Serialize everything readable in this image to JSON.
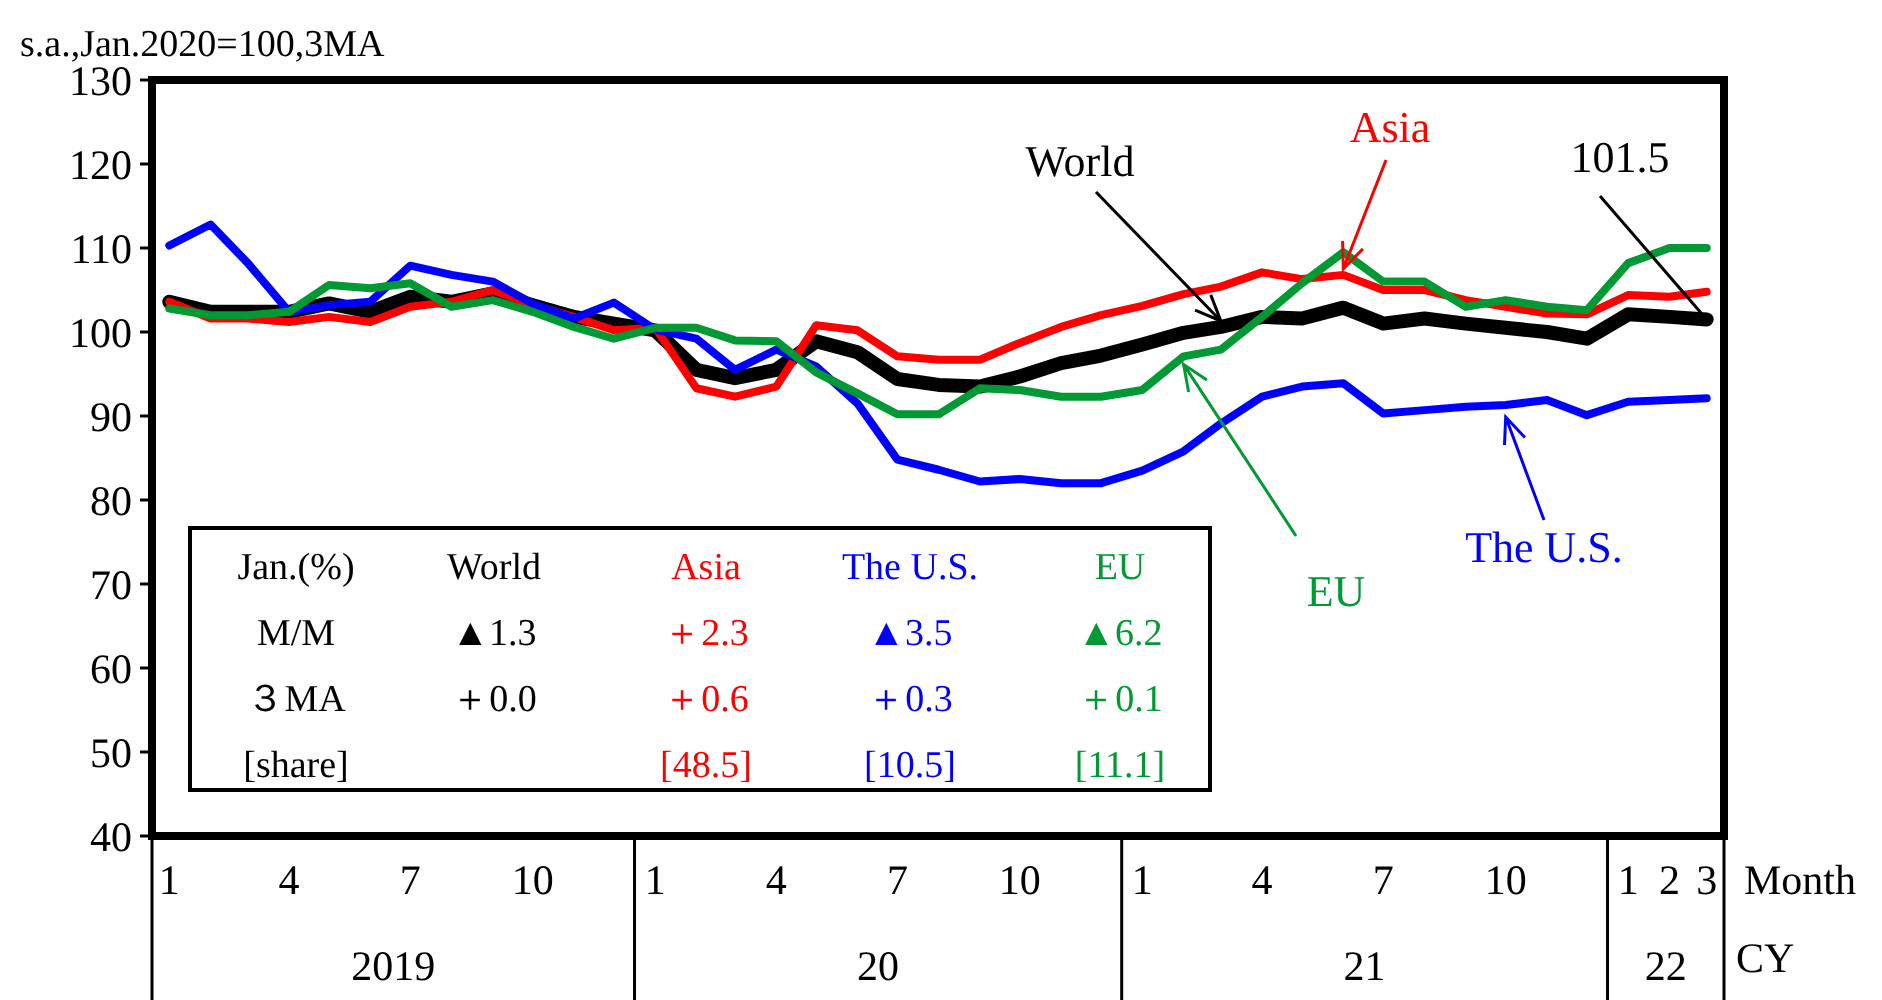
{
  "chart_data": {
    "type": "line",
    "ylabel": "s.a.,Jan.2020=100,3MA",
    "xlabel": "Month",
    "x": [
      "2019-01",
      "2019-02",
      "2019-03",
      "2019-04",
      "2019-05",
      "2019-06",
      "2019-07",
      "2019-08",
      "2019-09",
      "2019-10",
      "2019-11",
      "2019-12",
      "2020-01",
      "2020-02",
      "2020-03",
      "2020-04",
      "2020-05",
      "2020-06",
      "2020-07",
      "2020-08",
      "2020-09",
      "2020-10",
      "2020-11",
      "2020-12",
      "2021-01",
      "2021-02",
      "2021-03",
      "2021-04",
      "2021-05",
      "2021-06",
      "2021-07",
      "2021-08",
      "2021-09",
      "2021-10",
      "2021-11",
      "2021-12",
      "2022-01",
      "2022-02",
      "2022-03"
    ],
    "series": [
      {
        "name": "World",
        "color": "#000000",
        "values": [
          103.6,
          102.4,
          102.4,
          102.4,
          103.4,
          102.4,
          104.2,
          103.6,
          104.6,
          103.2,
          101.8,
          101,
          100.2,
          95.5,
          94.5,
          95.5,
          98.9,
          97.6,
          94.4,
          93.7,
          93.5,
          94.7,
          96.3,
          97.2,
          98.5,
          99.9,
          100.6,
          101.8,
          101.6,
          102.9,
          101,
          101.6,
          101,
          100.5,
          100,
          99.2,
          102.1,
          101.8,
          101.5
        ]
      },
      {
        "name": "Asia",
        "color": "#ff0000",
        "values": [
          103.6,
          101.6,
          101.6,
          101.2,
          101.8,
          101.2,
          103,
          103.6,
          105,
          103.2,
          101.8,
          100.2,
          100.5,
          93.3,
          92.3,
          93.5,
          100.8,
          100.2,
          97.1,
          96.7,
          96.7,
          98.7,
          100.6,
          102,
          103.1,
          104.5,
          105.4,
          107.1,
          106.3,
          106.8,
          105,
          105,
          103.8,
          103,
          102.2,
          102.1,
          104.4,
          104.2,
          104.8
        ]
      },
      {
        "name": "The U.S.",
        "color": "#0000ff",
        "values": [
          110.3,
          112.8,
          108.2,
          102.4,
          103.2,
          103.6,
          107.9,
          106.8,
          106,
          103.4,
          101.6,
          103.5,
          100.3,
          99.2,
          95.5,
          97.9,
          95.9,
          91.5,
          84.8,
          83.6,
          82.2,
          82.5,
          82,
          82,
          83.5,
          85.8,
          89.1,
          92.3,
          93.5,
          93.9,
          90.3,
          90.7,
          91.1,
          91.3,
          91.9,
          90.1,
          91.7,
          91.9,
          92.1
        ]
      },
      {
        "name": "EU",
        "color": "#009933",
        "values": [
          102.8,
          102,
          102,
          102.4,
          105.6,
          105.2,
          105.8,
          103,
          103.8,
          102.4,
          100.6,
          99.2,
          100.5,
          100.5,
          99,
          98.9,
          95.2,
          92.7,
          90.2,
          90.2,
          93.3,
          93.1,
          92.3,
          92.3,
          93.1,
          97.1,
          97.9,
          101.8,
          105.8,
          109.5,
          106,
          106,
          103,
          103.8,
          103,
          102.6,
          108.2,
          110,
          110
        ]
      }
    ],
    "xlim": [
      "2018-12-19",
      "2022-03-14"
    ],
    "xticks": [
      {
        "value": "2019-01",
        "label": "1"
      },
      {
        "value": "2019-04",
        "label": "4"
      },
      {
        "value": "2019-07",
        "label": "7"
      },
      {
        "value": "2019-10",
        "label": "10"
      },
      {
        "value": "2020-01",
        "label": "1"
      },
      {
        "value": "2020-04",
        "label": "4"
      },
      {
        "value": "2020-07",
        "label": "7"
      },
      {
        "value": "2020-10",
        "label": "10"
      },
      {
        "value": "2021-01",
        "label": "1"
      },
      {
        "value": "2021-04",
        "label": "4"
      },
      {
        "value": "2021-07",
        "label": "7"
      },
      {
        "value": "2021-10",
        "label": "10"
      },
      {
        "value": "2022-01",
        "label": "1"
      },
      {
        "value": "2022-02",
        "label": "2"
      },
      {
        "value": "2022-03",
        "label": "3"
      }
    ],
    "ylim": [
      40,
      130
    ],
    "yticks": [
      40,
      50,
      60,
      70,
      80,
      90,
      100,
      110,
      120,
      130
    ],
    "grid": false,
    "marker": "none",
    "line_style": "solid",
    "annotations": [
      "Jan.(%)",
      "M/M",
      "３MA",
      "[share]",
      "▲1.3",
      "＋0.0",
      "＋2.3",
      "＋0.6",
      "[48.5]",
      "▲3.5",
      "＋0.3",
      "[10.5]",
      "▲6.2",
      "＋0.1",
      "[11.1]",
      "2019",
      "20",
      "21",
      "22",
      "CY",
      {
        "text": "101.5",
        "x": "2022-03",
        "y": 101.5
      }
    ]
  }
}
